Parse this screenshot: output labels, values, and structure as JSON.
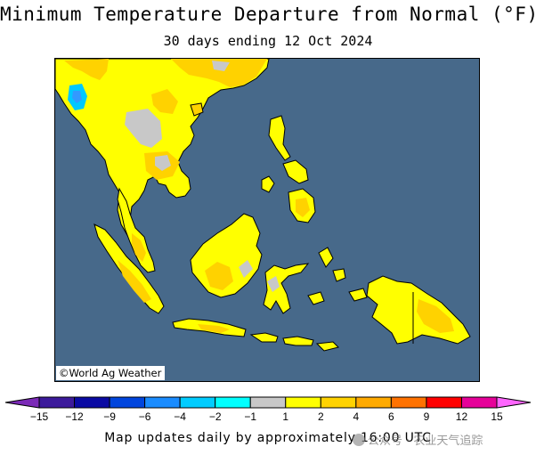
{
  "header": {
    "title": "Minimum Temperature Departure from Normal (°F)",
    "subtitle": "30 days ending 12 Oct 2024"
  },
  "map": {
    "region": "Southeast Asia",
    "credit": "©World Ag Weather",
    "colors": {
      "ocean": "#47698a",
      "no_change": "#c8c8c8",
      "warm_1_2": "#ffff00",
      "warm_2_4": "#ffd200",
      "warm_4_6": "#ffaa00",
      "cool_2_4": "#00c8ff",
      "cool_4_6": "#3399ff"
    }
  },
  "legend": {
    "tick_labels": [
      "−15",
      "−12",
      "−9",
      "−6",
      "−4",
      "−2",
      "−1",
      "1",
      "2",
      "4",
      "6",
      "9",
      "12",
      "15"
    ],
    "bins": [
      {
        "color": "#7b2ab7"
      },
      {
        "color": "#3c1a9b"
      },
      {
        "color": "#0a0aa3"
      },
      {
        "color": "#0045dd"
      },
      {
        "color": "#1a8cff"
      },
      {
        "color": "#00ccff"
      },
      {
        "color": "#00ffff"
      },
      {
        "color": "#c8c8c8"
      },
      {
        "color": "#ffff00"
      },
      {
        "color": "#ffd200"
      },
      {
        "color": "#ffaa00"
      },
      {
        "color": "#ff7200"
      },
      {
        "color": "#ff0000"
      },
      {
        "color": "#e60099"
      },
      {
        "color": "#ff66ff"
      }
    ]
  },
  "footer": {
    "text": "Map updates daily by approximately 16:00 UTC"
  },
  "watermark": {
    "text": "公众号 · 农业天气追踪"
  }
}
